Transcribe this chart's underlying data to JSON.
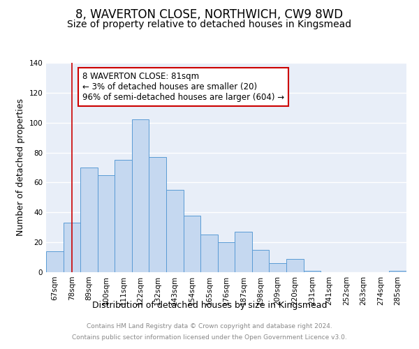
{
  "title": "8, WAVERTON CLOSE, NORTHWICH, CW9 8WD",
  "subtitle": "Size of property relative to detached houses in Kingsmead",
  "xlabel": "Distribution of detached houses by size in Kingsmead",
  "ylabel": "Number of detached properties",
  "bar_labels": [
    "67sqm",
    "78sqm",
    "89sqm",
    "100sqm",
    "111sqm",
    "122sqm",
    "132sqm",
    "143sqm",
    "154sqm",
    "165sqm",
    "176sqm",
    "187sqm",
    "198sqm",
    "209sqm",
    "220sqm",
    "231sqm",
    "241sqm",
    "252sqm",
    "263sqm",
    "274sqm",
    "285sqm"
  ],
  "bar_values": [
    14,
    33,
    70,
    65,
    75,
    102,
    77,
    55,
    38,
    25,
    20,
    27,
    15,
    6,
    9,
    1,
    0,
    0,
    0,
    0,
    1
  ],
  "bar_color": "#c5d8f0",
  "bar_edge_color": "#5a9bd5",
  "vline_x_index": 1,
  "vline_color": "#cc0000",
  "annotation_line1": "8 WAVERTON CLOSE: 81sqm",
  "annotation_line2": "← 3% of detached houses are smaller (20)",
  "annotation_line3": "96% of semi-detached houses are larger (604) →",
  "annotation_box_color": "#ffffff",
  "annotation_box_edge_color": "#cc0000",
  "ylim": [
    0,
    140
  ],
  "yticks": [
    0,
    20,
    40,
    60,
    80,
    100,
    120,
    140
  ],
  "footer_line1": "Contains HM Land Registry data © Crown copyright and database right 2024.",
  "footer_line2": "Contains public sector information licensed under the Open Government Licence v3.0.",
  "background_color": "#e8eef8",
  "grid_color": "#ffffff",
  "title_fontsize": 12,
  "subtitle_fontsize": 10,
  "axis_label_fontsize": 9,
  "tick_fontsize": 7.5,
  "annotation_fontsize": 8.5,
  "footer_fontsize": 6.5
}
